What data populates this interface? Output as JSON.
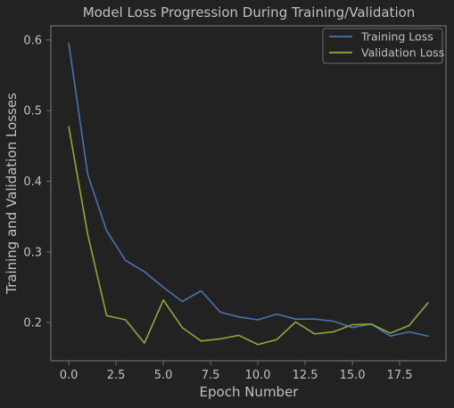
{
  "chart_data": {
    "type": "line",
    "title": "Model Loss Progression During Training/Validation",
    "xlabel": "Epoch Number",
    "ylabel": "Training and Validation Losses",
    "xlim": [
      -0.95,
      19.95
    ],
    "ylim": [
      0.146,
      0.62
    ],
    "xticks": [
      0.0,
      2.5,
      5.0,
      7.5,
      10.0,
      12.5,
      15.0,
      17.5
    ],
    "xtick_labels": [
      "0.0",
      "2.5",
      "5.0",
      "7.5",
      "10.0",
      "12.5",
      "15.0",
      "17.5"
    ],
    "yticks": [
      0.2,
      0.3,
      0.4,
      0.5,
      0.6
    ],
    "ytick_labels": [
      "0.2",
      "0.3",
      "0.4",
      "0.5",
      "0.6"
    ],
    "grid": false,
    "legend_position": "top-right",
    "x": [
      0,
      1,
      2,
      3,
      4,
      5,
      6,
      7,
      8,
      9,
      10,
      11,
      12,
      13,
      14,
      15,
      16,
      17,
      18,
      19
    ],
    "series": [
      {
        "name": "Training Loss",
        "color": "#4c72b0",
        "values": [
          0.595,
          0.41,
          0.33,
          0.288,
          0.272,
          0.25,
          0.23,
          0.245,
          0.215,
          0.208,
          0.204,
          0.212,
          0.205,
          0.205,
          0.202,
          0.193,
          0.198,
          0.181,
          0.187,
          0.181
        ]
      },
      {
        "name": "Validation Loss",
        "color": "#8fa83c",
        "values": [
          0.477,
          0.325,
          0.21,
          0.204,
          0.171,
          0.232,
          0.193,
          0.174,
          0.177,
          0.182,
          0.169,
          0.176,
          0.201,
          0.184,
          0.187,
          0.197,
          0.198,
          0.185,
          0.196,
          0.228
        ]
      }
    ]
  },
  "colors": {
    "background": "#222222",
    "axes_frame": "#6e6e6e",
    "text": "#c0c0c0"
  }
}
